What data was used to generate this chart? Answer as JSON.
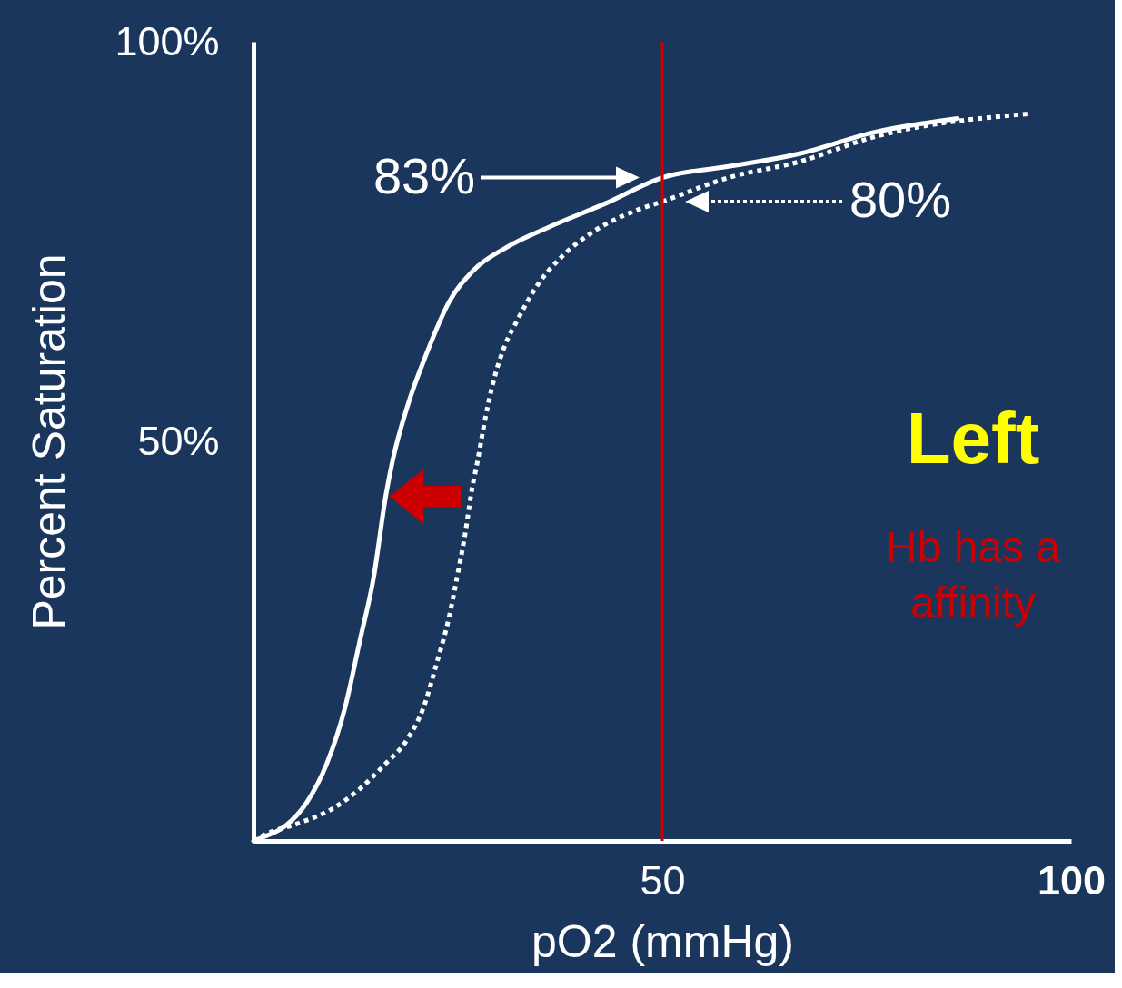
{
  "chart_data": {
    "type": "line",
    "xlabel": "pO2 (mmHg)",
    "ylabel": "Percent Saturation",
    "xlim": [
      0,
      100
    ],
    "ylim": [
      0,
      100
    ],
    "xticks": [
      50,
      100
    ],
    "yticks": [
      {
        "value": 50,
        "label": "50%"
      },
      {
        "value": 100,
        "label": "100%"
      }
    ],
    "series": [
      {
        "color": "#ffffff",
        "line_style": "solid",
        "x": [
          0,
          1.0,
          3.8,
          6.5,
          8.9,
          11.2,
          13.0,
          14.7,
          16.2,
          17.0,
          18.8,
          21.1,
          23.9,
          26.9,
          31.0,
          36.1,
          42.9,
          50,
          58.1,
          66.8,
          75.6,
          86.1
        ],
        "values": [
          0,
          0.4,
          1.8,
          4.8,
          9.5,
          16.7,
          25.0,
          33.0,
          43.3,
          47.5,
          54.3,
          60.8,
          67.4,
          71.4,
          74.3,
          76.8,
          79.7,
          83,
          84.4,
          86.0,
          88.6,
          90.4
        ]
      },
      {
        "color": "#ffffff",
        "line_style": "dotted",
        "x": [
          0,
          1.4,
          5.5,
          9.6,
          13.0,
          16.0,
          18.8,
          20.8,
          22.4,
          23.9,
          24.9,
          25.9,
          26.7,
          27.4,
          28.3,
          29.3,
          30.6,
          32.3,
          34.7,
          37.8,
          41.2,
          46.3,
          50,
          58.1,
          66.8,
          75.6,
          95.0
        ],
        "values": [
          0,
          0.8,
          2.2,
          4.0,
          6.5,
          9.5,
          12.7,
          16.7,
          22.2,
          27.9,
          33.0,
          38.5,
          43.9,
          47.5,
          52.6,
          57.3,
          61.6,
          65.2,
          69.5,
          73.2,
          76.0,
          78.7,
          80,
          83.0,
          85.0,
          88.0,
          91.0
        ]
      }
    ],
    "ref_lines": [
      {
        "axis": "x",
        "value": 50,
        "color": "#cc0000"
      }
    ],
    "annotations": [
      "83%",
      "80%",
      "Left",
      "Hb has a",
      "affinity"
    ]
  }
}
